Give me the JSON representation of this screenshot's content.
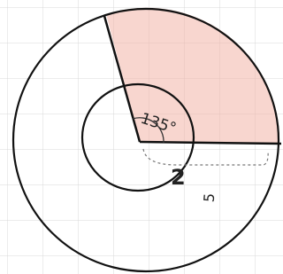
{
  "labels": {
    "angle": "135°",
    "inner_radius": "2",
    "outer_radius": "5"
  }
}
